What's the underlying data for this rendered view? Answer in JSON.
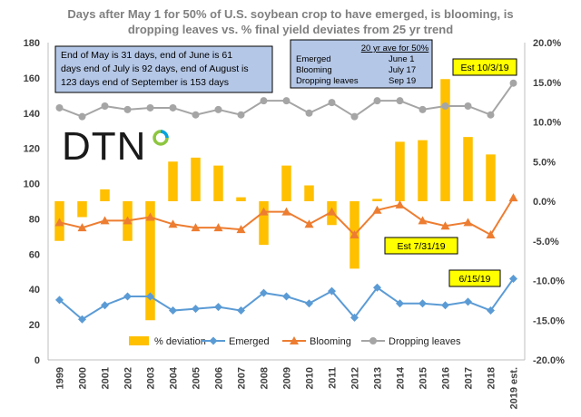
{
  "chart_data": {
    "type": "bar+line",
    "title": "Days after May 1 for 50% of U.S. soybean crop to have emerged, is blooming, is dropping leaves vs. % final yield deviates from 25 yr trend",
    "title_lines": [
      "Days after May 1 for 50%  of U.S. soybean crop to have emerged, is blooming, is",
      "dropping leaves vs. % final yield deviates from 25 yr trend"
    ],
    "categories": [
      "1999",
      "2000",
      "2001",
      "2002",
      "2003",
      "2004",
      "2005",
      "2006",
      "2007",
      "2008",
      "2009",
      "2010",
      "2011",
      "2012",
      "2013",
      "2014",
      "2015",
      "2016",
      "2017",
      "2018",
      "2019 est."
    ],
    "y_left": {
      "min": 0,
      "max": 180,
      "step": 20,
      "ticks": [
        "0",
        "20",
        "40",
        "60",
        "80",
        "100",
        "120",
        "140",
        "160",
        "180"
      ]
    },
    "y_right": {
      "min": -20,
      "max": 20,
      "step": 5,
      "ticks": [
        "-20.0%",
        "-15.0%",
        "-10.0%",
        "-5.0%",
        "0.0%",
        "5.0%",
        "10.0%",
        "15.0%",
        "20.0%"
      ]
    },
    "series": [
      {
        "name": "% deviation",
        "type": "bar",
        "axis": "right",
        "color": "#ffc000",
        "values": [
          -5.0,
          -2.0,
          1.5,
          -5.0,
          -15.0,
          5.0,
          5.5,
          4.5,
          0.5,
          -5.5,
          4.5,
          2.0,
          -3.0,
          -8.5,
          0.3,
          7.5,
          7.7,
          15.4,
          8.1,
          5.9,
          null
        ]
      },
      {
        "name": "Emerged",
        "type": "line",
        "axis": "left",
        "color": "#5b9bd5",
        "marker": "diamond",
        "values": [
          34,
          23,
          31,
          36,
          36,
          28,
          29,
          30,
          28,
          38,
          36,
          32,
          39,
          24,
          41,
          32,
          32,
          31,
          33,
          28,
          46
        ]
      },
      {
        "name": "Blooming",
        "type": "line",
        "axis": "left",
        "color": "#ed7d31",
        "marker": "triangle",
        "values": [
          78,
          75,
          79,
          79,
          81,
          77,
          75,
          75,
          74,
          84,
          84,
          77,
          84,
          71,
          85,
          88,
          79,
          76,
          78,
          71,
          92
        ]
      },
      {
        "name": "Dropping leaves",
        "type": "line",
        "axis": "left",
        "color": "#a5a5a5",
        "marker": "circle",
        "values": [
          143,
          138,
          144,
          142,
          143,
          143,
          139,
          142,
          139,
          147,
          147,
          140,
          146,
          138,
          147,
          147,
          142,
          144,
          144,
          139,
          157
        ]
      }
    ],
    "legend_position": "bottom",
    "grid": false
  },
  "annotations": {
    "days_box": {
      "lines": [
        "End  of May is 31 days, end of June is 61",
        "days end of July is 92 days, end of August is",
        "123 days end of September is 153 days"
      ],
      "fill": "#b4c7e7"
    },
    "avg_box": {
      "heading": "20 yr ave for 50%",
      "rows": [
        {
          "label": "Emerged",
          "value": "June 1"
        },
        {
          "label": "Blooming",
          "value": "July 17"
        },
        {
          "label": "Dropping leaves",
          "value": "Sep  19"
        }
      ],
      "fill": "#b4c7e7"
    },
    "callouts": [
      {
        "text": "Est 10/3/19",
        "fill": "#ffff00"
      },
      {
        "text": "Est 7/31/19",
        "fill": "#ffff00"
      },
      {
        "text": "6/15/19",
        "fill": "#ffff00"
      }
    ]
  },
  "logo": {
    "text": "DTN"
  }
}
